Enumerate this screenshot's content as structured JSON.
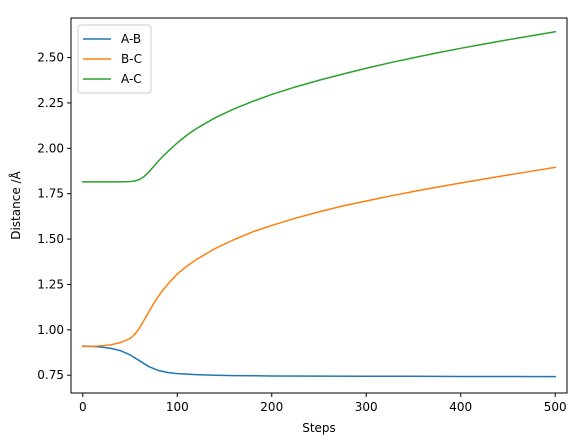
{
  "chart_data": {
    "type": "line",
    "title": "",
    "xlabel": "Steps",
    "ylabel": "Distance /Å",
    "xlim": [
      -12.5,
      512.5
    ],
    "ylim": [
      0.652,
      2.718
    ],
    "xticks": [
      0,
      100,
      200,
      300,
      400,
      500
    ],
    "xtick_labels": [
      "0",
      "100",
      "200",
      "300",
      "400",
      "500"
    ],
    "yticks": [
      0.75,
      1.0,
      1.25,
      1.5,
      1.75,
      2.0,
      2.25,
      2.5
    ],
    "ytick_labels": [
      "0.75",
      "1.00",
      "1.25",
      "1.50",
      "1.75",
      "2.00",
      "2.25",
      "2.50"
    ],
    "grid": false,
    "legend_position": "top-left",
    "series": [
      {
        "name": "A-B",
        "color": "#1f77b4",
        "x": [
          0,
          10,
          20,
          30,
          40,
          50,
          60,
          70,
          80,
          90,
          100,
          120,
          140,
          160,
          180,
          200,
          250,
          300,
          350,
          400,
          450,
          500
        ],
        "y": [
          0.91,
          0.909,
          0.905,
          0.898,
          0.885,
          0.862,
          0.83,
          0.797,
          0.776,
          0.765,
          0.759,
          0.753,
          0.75,
          0.748,
          0.747,
          0.746,
          0.745,
          0.744,
          0.744,
          0.743,
          0.743,
          0.742
        ]
      },
      {
        "name": "B-C",
        "color": "#ff7f0e",
        "x": [
          0,
          10,
          20,
          30,
          40,
          50,
          55,
          60,
          65,
          70,
          75,
          80,
          85,
          90,
          100,
          110,
          120,
          140,
          160,
          180,
          200,
          225,
          250,
          275,
          300,
          325,
          350,
          375,
          400,
          425,
          450,
          475,
          500
        ],
        "y": [
          0.908,
          0.909,
          0.912,
          0.918,
          0.93,
          0.952,
          0.975,
          1.01,
          1.055,
          1.1,
          1.145,
          1.185,
          1.22,
          1.252,
          1.308,
          1.35,
          1.387,
          1.448,
          1.497,
          1.54,
          1.575,
          1.615,
          1.65,
          1.682,
          1.71,
          1.737,
          1.762,
          1.786,
          1.809,
          1.831,
          1.853,
          1.874,
          1.895
        ]
      },
      {
        "name": "A-C",
        "color": "#2ca02c",
        "x": [
          0,
          10,
          20,
          30,
          40,
          50,
          55,
          60,
          65,
          70,
          75,
          80,
          85,
          90,
          100,
          110,
          120,
          140,
          160,
          180,
          200,
          225,
          250,
          275,
          300,
          325,
          350,
          375,
          400,
          425,
          450,
          475,
          500
        ],
        "y": [
          1.815,
          1.815,
          1.815,
          1.815,
          1.815,
          1.817,
          1.82,
          1.828,
          1.845,
          1.87,
          1.9,
          1.93,
          1.957,
          1.982,
          2.03,
          2.072,
          2.108,
          2.168,
          2.217,
          2.259,
          2.297,
          2.338,
          2.375,
          2.409,
          2.441,
          2.471,
          2.499,
          2.526,
          2.551,
          2.575,
          2.598,
          2.62,
          2.642
        ]
      }
    ]
  }
}
